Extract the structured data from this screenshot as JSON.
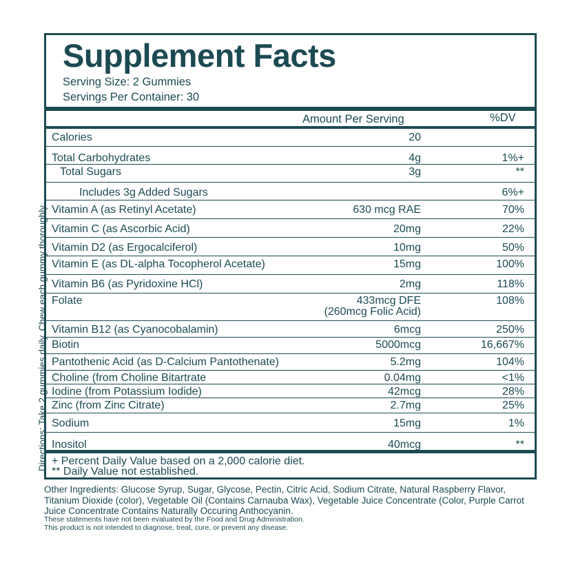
{
  "directions": "Directions: Take 2 gummies daily. Chew each gummy thoroughly",
  "title": "Supplement Facts",
  "serving_size": "Serving Size: 2 Gummies",
  "servings_per_container": "Servings Per Container: 30",
  "header": {
    "amount": "Amount Per Serving",
    "dv": "%DV"
  },
  "rows": [
    {
      "label": "Calories",
      "amount": "20",
      "dv": ""
    },
    {
      "label": "Total Carbohydrates",
      "amount": "4g",
      "dv": "1%+"
    },
    {
      "label": "Total Sugars",
      "amount": "3g",
      "dv": "**"
    },
    {
      "label": "Includes 3g Added Sugars",
      "amount": "",
      "dv": "6%+"
    },
    {
      "label": "Vitamin A (as Retinyl Acetate)",
      "amount": "630 mcg RAE",
      "dv": "70%"
    },
    {
      "label": "Vitamin C (as Ascorbic Acid)",
      "amount": "20mg",
      "dv": "22%"
    },
    {
      "label": "Vitamin D2 (as Ergocalciferol)",
      "amount": "10mg",
      "dv": "50%"
    },
    {
      "label": "Vitamin E (as DL-alpha Tocopherol Acetate)",
      "amount": "15mg",
      "dv": "100%"
    },
    {
      "label": "Vitamin B6 (as Pyridoxine HCl)",
      "amount": "2mg",
      "dv": "118%"
    },
    {
      "label": "Folate",
      "amount": "433mcg DFE",
      "amount2": "(260mcg Folic Acid)",
      "dv": "108%"
    },
    {
      "label": "Vitamin B12 (as Cyanocobalamin)",
      "amount": "6mcg",
      "dv": "250%"
    },
    {
      "label": "Biotin",
      "amount": "5000mcg",
      "dv": "16,667%"
    },
    {
      "label": "Pantothenic Acid (as D-Calcium Pantothenate)",
      "amount": "5.2mg",
      "dv": "104%"
    },
    {
      "label": "Choline (from Choline Bitartrate",
      "amount": "0.04mg",
      "dv": "<1%"
    },
    {
      "label": "Iodine (from Potassium Iodide)",
      "amount": "42mcg",
      "dv": "28%"
    },
    {
      "label": "Zinc (from Zinc Citrate)",
      "amount": "2.7mg",
      "dv": "25%"
    },
    {
      "label": "Sodium",
      "amount": "15mg",
      "dv": "1%"
    },
    {
      "label": "Inositol",
      "amount": "40mcg",
      "dv": "**"
    }
  ],
  "footnotes": [
    "+ Percent Daily Value based on a 2,000 calorie diet.",
    "** Daily Value not established."
  ],
  "other_ingredients": "Other Ingredients: Glucose Syrup, Sugar, Glycose, Pectin, Citric Acid, Sodium Citrate, Natural Raspberry Flavor, Titanium Dioxide (color), Vegetable Oil (Contains Carnauba Wax), Vegetable Juice Concentrate (Color, Purple Carrot Juice Concentrate Contains Naturally Occuring Anthocyanin.",
  "disclaimer1": "These statements have not been evaluated by the Food and Drug Administration.",
  "disclaimer2": "This product is not intended to diagnose, treat, cure, or prevent any disease.",
  "colors": {
    "ink": "#1c4a52",
    "background": "#ffffff"
  }
}
